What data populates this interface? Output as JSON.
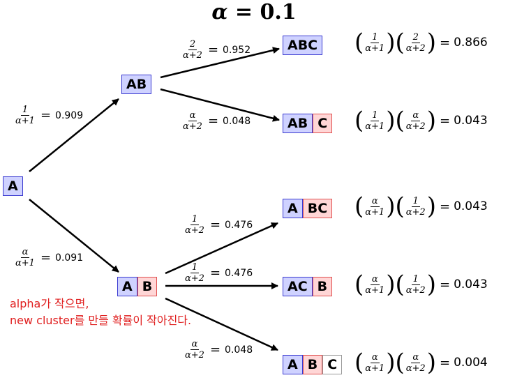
{
  "title": {
    "symbol": "α",
    "rest": " = 0.1"
  },
  "nodes": {
    "A": [
      "A"
    ],
    "AB": [
      "AB"
    ],
    "A_B": [
      "A",
      "B"
    ],
    "ABC": [
      "ABC"
    ],
    "AB_C": [
      "AB",
      "C"
    ],
    "A_BC": [
      "A",
      "BC"
    ],
    "AC_B": [
      "AC",
      "B"
    ],
    "A_B_C": [
      "A",
      "B",
      "C"
    ]
  },
  "edges": {
    "a_ab": {
      "num": "1",
      "den": "α+1",
      "value": "0.909"
    },
    "a_a_b": {
      "num": "α",
      "den": "α+1",
      "value": "0.091"
    },
    "ab_abc": {
      "num": "2",
      "den": "α+2",
      "value": "0.952"
    },
    "ab_ab_c": {
      "num": "α",
      "den": "α+2",
      "value": "0.048"
    },
    "a_b_a_bc": {
      "num": "1",
      "den": "α+2",
      "value": "0.476"
    },
    "a_b_ac_b": {
      "num": "1",
      "den": "α+2",
      "value": "0.476"
    },
    "a_b_a_b_c": {
      "num": "α",
      "den": "α+2",
      "value": "0.048"
    }
  },
  "probabilities": [
    {
      "f1_num": "1",
      "f1_den": "α+1",
      "f2_num": "2",
      "f2_den": "α+2",
      "value": "0.866"
    },
    {
      "f1_num": "1",
      "f1_den": "α+1",
      "f2_num": "α",
      "f2_den": "α+2",
      "value": "0.043"
    },
    {
      "f1_num": "α",
      "f1_den": "α+1",
      "f2_num": "1",
      "f2_den": "α+2",
      "value": "0.043"
    },
    {
      "f1_num": "α",
      "f1_den": "α+1",
      "f2_num": "1",
      "f2_den": "α+2",
      "value": "0.043"
    },
    {
      "f1_num": "α",
      "f1_den": "α+1",
      "f2_num": "α",
      "f2_den": "α+2",
      "value": "0.004"
    }
  ],
  "equals": "=",
  "note": {
    "line1": "alpha가 작으면,",
    "line2": "new cluster를 만들 확률이 작아진다."
  },
  "colors": {
    "blue_fill": "#cfd2ff",
    "blue_border": "#3a3ad0",
    "red_fill": "#ffd6d6",
    "red_border": "#e05050",
    "note": "#e02020"
  }
}
